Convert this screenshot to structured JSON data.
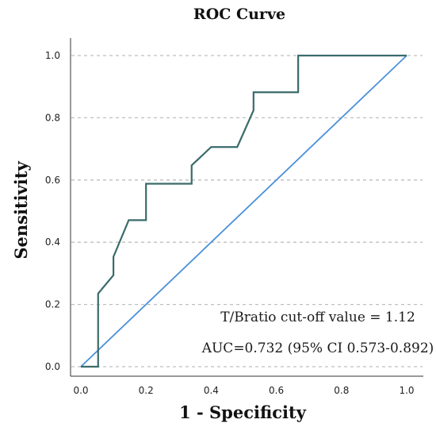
{
  "chart_data": {
    "type": "line",
    "title": "ROC Curve",
    "xlabel": "1 - Specificity",
    "ylabel": "Sensitivity",
    "xlim": [
      0.0,
      1.0
    ],
    "ylim": [
      0.0,
      1.0
    ],
    "x_ticks": [
      "0.0",
      "0.2",
      "0.4",
      "0.6",
      "0.8",
      "1.0"
    ],
    "y_ticks": [
      "0.0",
      "0.2",
      "0.4",
      "0.6",
      "0.8",
      "1.0"
    ],
    "grid": "horizontal dashed",
    "series": [
      {
        "color": "#3b6b6b",
        "step": true,
        "points": [
          [
            0.0,
            0.0
          ],
          [
            0.053,
            0.0
          ],
          [
            0.053,
            0.235
          ],
          [
            0.1,
            0.294
          ],
          [
            0.1,
            0.353
          ],
          [
            0.147,
            0.471
          ],
          [
            0.2,
            0.471
          ],
          [
            0.2,
            0.588
          ],
          [
            0.34,
            0.588
          ],
          [
            0.34,
            0.647
          ],
          [
            0.4,
            0.706
          ],
          [
            0.48,
            0.706
          ],
          [
            0.53,
            0.824
          ],
          [
            0.53,
            0.882
          ],
          [
            0.667,
            0.882
          ],
          [
            0.667,
            1.0
          ],
          [
            1.0,
            1.0
          ]
        ]
      },
      {
        "color": "#4a90d9",
        "points": [
          [
            0.0,
            0.0
          ],
          [
            1.0,
            1.0
          ]
        ]
      }
    ],
    "annotations": [
      {
        "key": "cutoff",
        "text": "T/Bratio cut-off value = 1.12"
      },
      {
        "key": "auc",
        "text": "AUC=0.732 (95% CI 0.573-0.892)"
      }
    ]
  }
}
